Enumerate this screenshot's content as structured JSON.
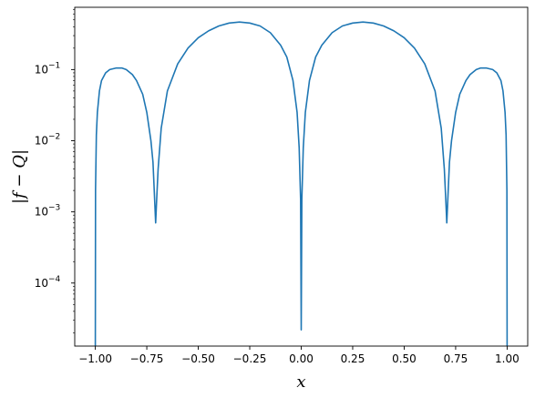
{
  "chart_data": {
    "type": "line",
    "title": "",
    "xlabel": "x",
    "ylabel": "|f − Q|",
    "xscale": "linear",
    "yscale": "log",
    "xlim": [
      -1.1,
      1.1
    ],
    "ylim": [
      1.3e-05,
      0.75
    ],
    "grid": false,
    "legend": "none",
    "x_ticks": [
      -1.0,
      -0.75,
      -0.5,
      -0.25,
      0.0,
      0.25,
      0.5,
      0.75,
      1.0
    ],
    "x_tick_labels": [
      "−1.00",
      "−0.75",
      "−0.50",
      "−0.25",
      "0.00",
      "0.25",
      "0.50",
      "0.75",
      "1.00"
    ],
    "y_ticks": [
      0.0001,
      0.001,
      0.01,
      0.1
    ],
    "y_tick_labels": [
      {
        "base": "10",
        "exp": "−4"
      },
      {
        "base": "10",
        "exp": "−3"
      },
      {
        "base": "10",
        "exp": "−2"
      },
      {
        "base": "10",
        "exp": "−1"
      }
    ],
    "series": [
      {
        "color": "#1f77b4",
        "x": [
          -1.0,
          -0.999,
          -0.995,
          -0.99,
          -0.98,
          -0.97,
          -0.95,
          -0.93,
          -0.9,
          -0.87,
          -0.85,
          -0.82,
          -0.8,
          -0.77,
          -0.75,
          -0.73,
          -0.72,
          -0.712,
          -0.707,
          -0.702,
          -0.695,
          -0.68,
          -0.65,
          -0.6,
          -0.55,
          -0.5,
          -0.45,
          -0.4,
          -0.35,
          -0.3,
          -0.25,
          -0.2,
          -0.15,
          -0.1,
          -0.07,
          -0.04,
          -0.02,
          -0.01,
          -0.003,
          0.0,
          0.003,
          0.01,
          0.02,
          0.04,
          0.07,
          0.1,
          0.15,
          0.2,
          0.25,
          0.3,
          0.35,
          0.4,
          0.45,
          0.5,
          0.55,
          0.6,
          0.65,
          0.68,
          0.695,
          0.702,
          0.707,
          0.712,
          0.72,
          0.73,
          0.75,
          0.77,
          0.8,
          0.82,
          0.85,
          0.87,
          0.9,
          0.93,
          0.95,
          0.97,
          0.98,
          0.99,
          0.995,
          0.999,
          1.0
        ],
        "y": [
          1.3e-05,
          0.002,
          0.012,
          0.025,
          0.05,
          0.07,
          0.09,
          0.1,
          0.105,
          0.105,
          0.1,
          0.085,
          0.07,
          0.045,
          0.025,
          0.01,
          0.005,
          0.0015,
          0.0007,
          0.0015,
          0.004,
          0.015,
          0.05,
          0.12,
          0.2,
          0.28,
          0.35,
          0.41,
          0.45,
          0.465,
          0.45,
          0.41,
          0.33,
          0.22,
          0.15,
          0.07,
          0.025,
          0.008,
          0.0015,
          2.2e-05,
          0.0015,
          0.008,
          0.025,
          0.07,
          0.15,
          0.22,
          0.33,
          0.41,
          0.45,
          0.465,
          0.45,
          0.41,
          0.35,
          0.28,
          0.2,
          0.12,
          0.05,
          0.015,
          0.004,
          0.0015,
          0.0007,
          0.0015,
          0.005,
          0.01,
          0.025,
          0.045,
          0.07,
          0.085,
          0.1,
          0.105,
          0.105,
          0.1,
          0.09,
          0.07,
          0.05,
          0.025,
          0.012,
          0.002,
          1.3e-05
        ]
      }
    ]
  }
}
